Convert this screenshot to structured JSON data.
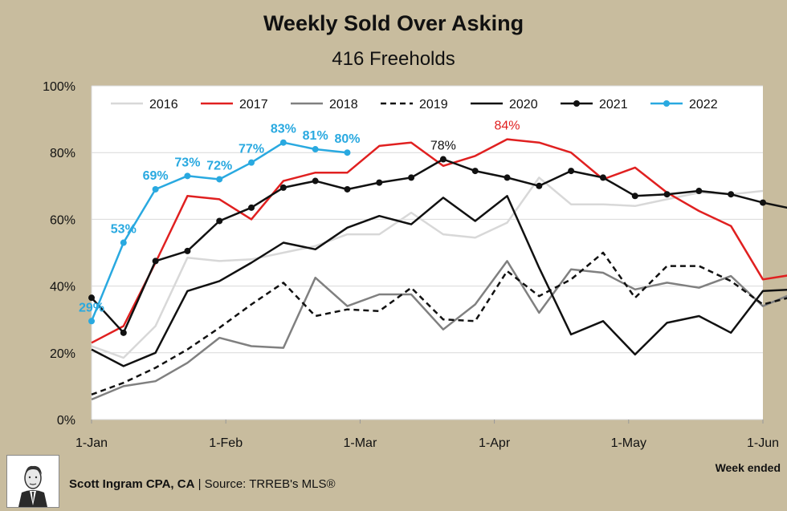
{
  "chart_data": {
    "type": "line",
    "title": "Weekly Sold Over Asking",
    "subtitle": "416 Freeholds",
    "xlabel": "Week ended",
    "ylabel": "",
    "ylim": [
      0,
      100
    ],
    "yticks": [
      "0%",
      "20%",
      "40%",
      "60%",
      "80%",
      "100%"
    ],
    "xticks": [
      "1-Jan",
      "1-Feb",
      "1-Mar",
      "1-Apr",
      "1-May",
      "1-Jun"
    ],
    "x_week_index_range": [
      0,
      21
    ],
    "legend_position": "top",
    "grid": "horizontal",
    "series": [
      {
        "name": "2016",
        "color": "#d8d8d8",
        "dash": "solid",
        "markers": false,
        "values": [
          22,
          18.5,
          28,
          48.5,
          47.5,
          48,
          50,
          52,
          55.5,
          55.5,
          62,
          55.5,
          54.5,
          59,
          72.5,
          64.5,
          64.5,
          64,
          66,
          68,
          67.5,
          68.5
        ]
      },
      {
        "name": "2017",
        "color": "#e02020",
        "dash": "solid",
        "markers": false,
        "values": [
          23,
          28,
          47,
          67,
          66,
          60,
          71.5,
          74,
          74,
          82,
          83,
          76,
          79,
          84,
          83,
          80,
          72,
          75.5,
          68,
          62.5,
          58,
          42,
          43.5
        ]
      },
      {
        "name": "2018",
        "color": "#808080",
        "dash": "solid",
        "markers": false,
        "values": [
          6,
          10,
          11.5,
          17,
          24.5,
          22,
          21.5,
          42.5,
          34,
          37.5,
          37.5,
          27,
          34.5,
          47.5,
          32,
          45,
          44,
          39,
          41,
          39.5,
          43,
          34,
          38
        ]
      },
      {
        "name": "2019",
        "color": "#111111",
        "dash": "dashed",
        "markers": false,
        "values": [
          7.5,
          11,
          15.5,
          21,
          27.5,
          34.5,
          41,
          31,
          33,
          32.5,
          39.5,
          30,
          29.5,
          44.5,
          37,
          42,
          50,
          36.5,
          46,
          46,
          41.5,
          34.5,
          37
        ]
      },
      {
        "name": "2020",
        "color": "#111111",
        "dash": "solid",
        "markers": false,
        "values": [
          21,
          16,
          20,
          38.5,
          41.5,
          47,
          53,
          51,
          57.5,
          61,
          58.5,
          66.5,
          59.5,
          67,
          45.5,
          25.5,
          29.5,
          19.5,
          29,
          31,
          26,
          38.5,
          39
        ]
      },
      {
        "name": "2021",
        "color": "#111111",
        "dash": "solid",
        "markers": true,
        "values": [
          36.5,
          26,
          47.5,
          50.5,
          59.5,
          63.5,
          69.5,
          71.5,
          69,
          71,
          72.5,
          78,
          74.5,
          72.5,
          70,
          74.5,
          72.5,
          67,
          67.5,
          68.5,
          67.5,
          65,
          63
        ]
      },
      {
        "name": "2022",
        "color": "#29a9e0",
        "dash": "solid",
        "markers": true,
        "values": [
          29.5,
          53,
          69,
          73,
          72,
          77,
          83,
          81,
          80
        ]
      }
    ],
    "annotations": [
      {
        "series": "2022",
        "index": 0,
        "text": "29%",
        "color": "#29a9e0"
      },
      {
        "series": "2022",
        "index": 1,
        "text": "53%",
        "color": "#29a9e0"
      },
      {
        "series": "2022",
        "index": 2,
        "text": "69%",
        "color": "#29a9e0"
      },
      {
        "series": "2022",
        "index": 3,
        "text": "73%",
        "color": "#29a9e0"
      },
      {
        "series": "2022",
        "index": 4,
        "text": "72%",
        "color": "#29a9e0"
      },
      {
        "series": "2022",
        "index": 5,
        "text": "77%",
        "color": "#29a9e0"
      },
      {
        "series": "2022",
        "index": 6,
        "text": "83%",
        "color": "#29a9e0"
      },
      {
        "series": "2022",
        "index": 7,
        "text": "81%",
        "color": "#29a9e0"
      },
      {
        "series": "2022",
        "index": 8,
        "text": "80%",
        "color": "#29a9e0"
      },
      {
        "series": "2021",
        "index": 11,
        "text": "78%",
        "color": "#111111"
      },
      {
        "series": "2017",
        "index": 13,
        "text": "84%",
        "color": "#e02020"
      }
    ]
  },
  "footer": {
    "author": "Scott Ingram CPA, CA",
    "separator": "|",
    "source": "Source: TRREB's MLS®"
  }
}
